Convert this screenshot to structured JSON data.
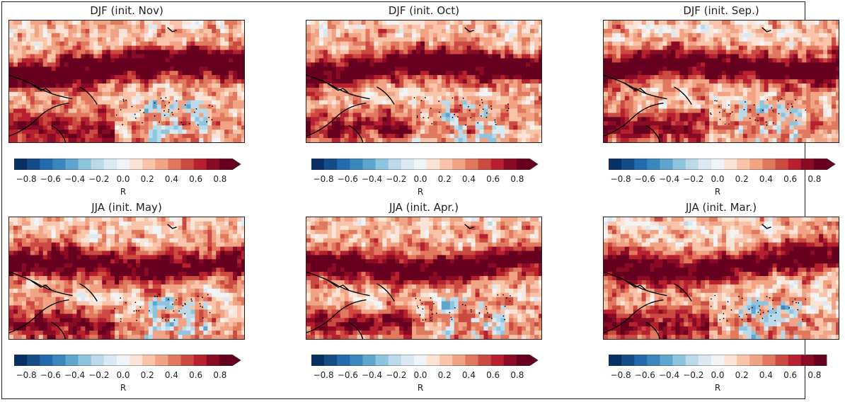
{
  "colors": {
    "palette": [
      "#053061",
      "#134c87",
      "#246aae",
      "#3a87bd",
      "#5ea6ce",
      "#8ec4de",
      "#bad9e9",
      "#dbeaf2",
      "#f1f4f6",
      "#fbe4d6",
      "#f9c4a9",
      "#f1a385",
      "#e17860",
      "#cb4b43",
      "#b6202f",
      "#8a0b25",
      "#67001f"
    ]
  },
  "colorbar": {
    "label": "R",
    "ticks": [
      "−0.8",
      "−0.6",
      "−0.4",
      "−0.2",
      "0.0",
      "0.2",
      "0.4",
      "0.6",
      "0.8"
    ],
    "levels": [
      -0.9,
      -0.8,
      -0.7,
      -0.6,
      -0.5,
      -0.4,
      -0.3,
      -0.2,
      -0.1,
      0.0,
      0.1,
      0.2,
      0.3,
      0.4,
      0.5,
      0.6,
      0.7,
      0.8,
      0.9
    ]
  },
  "chart_data": [
    {
      "type": "heatmap",
      "title": "DJF (init. Nov)",
      "colorbar_label": "R",
      "colorbar_extend": "max",
      "vmin": -0.9,
      "vmax": 0.9,
      "seed": 1,
      "band_strength": 0.82
    },
    {
      "type": "heatmap",
      "title": "DJF (init. Oct)",
      "colorbar_label": "R",
      "colorbar_extend": "max",
      "vmin": -0.9,
      "vmax": 0.9,
      "seed": 2,
      "band_strength": 0.8
    },
    {
      "type": "heatmap",
      "title": "DJF (init. Sep.)",
      "colorbar_label": "R",
      "colorbar_extend": "max",
      "vmin": -0.9,
      "vmax": 0.9,
      "seed": 3,
      "band_strength": 0.78
    },
    {
      "type": "heatmap",
      "title": "JJA (init. May)",
      "colorbar_label": "R",
      "colorbar_extend": "max",
      "vmin": -0.9,
      "vmax": 0.9,
      "seed": 4,
      "band_strength": 0.72
    },
    {
      "type": "heatmap",
      "title": "JJA (init. Apr.)",
      "colorbar_label": "R",
      "colorbar_extend": "max",
      "vmin": -0.9,
      "vmax": 0.9,
      "seed": 5,
      "band_strength": 0.74
    },
    {
      "type": "heatmap",
      "title": "JJA (init. Mar.)",
      "colorbar_label": "R",
      "colorbar_extend": "none",
      "vmin": -0.9,
      "vmax": 0.9,
      "seed": 6,
      "band_strength": 0.75
    }
  ]
}
